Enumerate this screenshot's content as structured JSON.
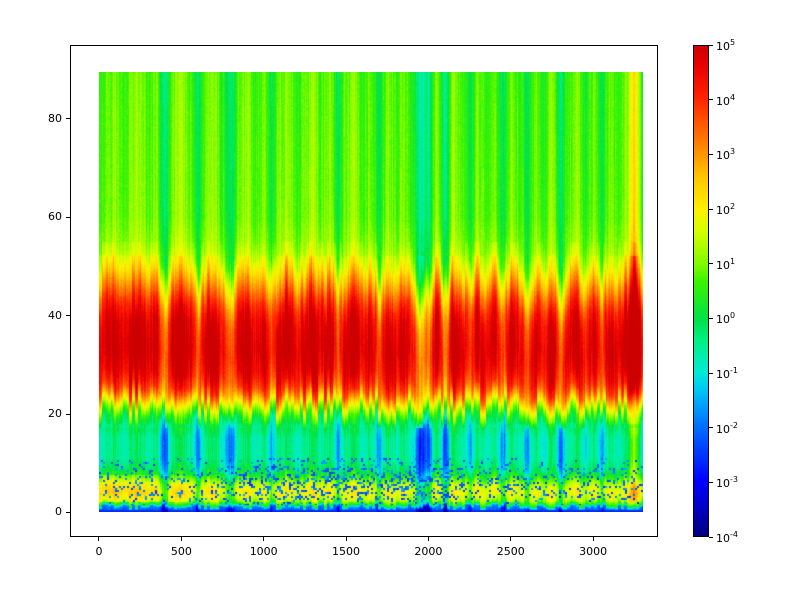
{
  "figure": {
    "background": "#ffffff",
    "axes_border_color": "#000000"
  },
  "chart_data": {
    "type": "heatmap",
    "title": "",
    "xlabel": "",
    "ylabel": "",
    "xlim": [
      -176,
      3394
    ],
    "ylim": [
      -5,
      95
    ],
    "data_extent": {
      "x": [
        0,
        3300
      ],
      "y": [
        0,
        89.5
      ]
    },
    "x_ticks": [
      0,
      500,
      1000,
      1500,
      2000,
      2500,
      3000
    ],
    "y_ticks": [
      0,
      20,
      40,
      60,
      80
    ],
    "grid": false,
    "value_scale": "log10",
    "zlim_log10": [
      -4,
      5
    ],
    "colorbar": {
      "base": 10,
      "tick_exponents": [
        5,
        4,
        3,
        2,
        1,
        0,
        -1,
        -2,
        -3,
        -4
      ],
      "position": "right"
    },
    "colormap_stops": [
      [
        0.0,
        0,
        0,
        130
      ],
      [
        0.06,
        0,
        0,
        200
      ],
      [
        0.111,
        0,
        0,
        255
      ],
      [
        0.222,
        0,
        110,
        255
      ],
      [
        0.3,
        0,
        200,
        245
      ],
      [
        0.333,
        0,
        235,
        215
      ],
      [
        0.4,
        0,
        240,
        130
      ],
      [
        0.444,
        0,
        225,
        70
      ],
      [
        0.52,
        60,
        245,
        0
      ],
      [
        0.556,
        130,
        250,
        0
      ],
      [
        0.62,
        210,
        255,
        0
      ],
      [
        0.667,
        255,
        240,
        0
      ],
      [
        0.73,
        255,
        200,
        0
      ],
      [
        0.778,
        255,
        150,
        0
      ],
      [
        0.85,
        255,
        80,
        0
      ],
      [
        0.889,
        255,
        40,
        0
      ],
      [
        0.96,
        235,
        0,
        0
      ],
      [
        1.0,
        205,
        0,
        0
      ]
    ],
    "profile_y_log10": [
      [
        0,
        -2.3
      ],
      [
        0.8,
        -2.1
      ],
      [
        1.6,
        0.3
      ],
      [
        2.5,
        1.2
      ],
      [
        4,
        1.6
      ],
      [
        5.5,
        1.2
      ],
      [
        7,
        0.2
      ],
      [
        8.5,
        -0.6
      ],
      [
        11,
        -1.0
      ],
      [
        15,
        -1.0
      ],
      [
        18,
        -0.5
      ],
      [
        20,
        0.6
      ],
      [
        22,
        2.0
      ],
      [
        24,
        3.2
      ],
      [
        27,
        4.0
      ],
      [
        32,
        4.4
      ],
      [
        38,
        4.1
      ],
      [
        41,
        3.6
      ],
      [
        44,
        2.8
      ],
      [
        47,
        2.0
      ],
      [
        50,
        1.2
      ],
      [
        54,
        0.7
      ],
      [
        60,
        0.45
      ],
      [
        70,
        0.4
      ],
      [
        82,
        0.35
      ],
      [
        90,
        0.3
      ]
    ],
    "column_x_step": 50,
    "column_log10_offsets": [
      0.2,
      0.5,
      0.9,
      0.3,
      0.8,
      1.1,
      0.4,
      0.7,
      -0.9,
      0.9,
      1.2,
      0.5,
      -0.6,
      0.8,
      1.0,
      0.2,
      -0.8,
      0.6,
      1.0,
      0.3,
      0.7,
      -0.4,
      0.8,
      1.1,
      0.2,
      0.6,
      1.2,
      0.4,
      0.9,
      -0.5,
      0.7,
      1.0,
      0.3,
      0.8,
      -0.6,
      0.9,
      0.4,
      0.7,
      0.1,
      -1.2,
      -0.9,
      0.9,
      -1.0,
      1.0,
      0.5,
      -0.3,
      0.8,
      0.2,
      0.6,
      -0.7,
      0.9,
      0.4,
      -0.5,
      0.7,
      0.1,
      1.1,
      -0.8,
      0.5,
      0.8,
      0.0,
      0.6,
      -0.4,
      0.7,
      0.3,
      0.9,
      2.6,
      0.0
    ],
    "noise": {
      "seed": 7,
      "col_fine_amp": 0.3,
      "grain_amp": 0.12,
      "jitter_amp_band": 2.2,
      "jitter_amp_out": 0.6
    },
    "speckle": {
      "y_min": 1.5,
      "y_max": 11,
      "p_base": 0.15,
      "p_hot": 0.3,
      "hot_x_min": 850,
      "hot_x_max": 2150,
      "v_deep": -2.6
    },
    "low_left_boost": {
      "x_max": 850,
      "y_min": 2,
      "y_max": 7.5,
      "amount": 0.55
    }
  }
}
